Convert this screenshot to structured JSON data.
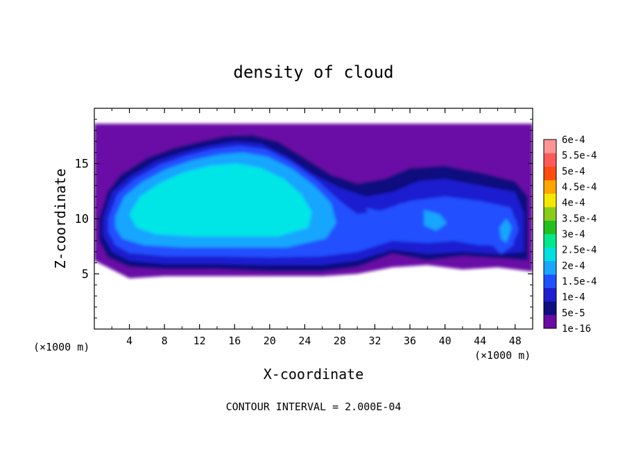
{
  "chart_data": {
    "type": "heatmap",
    "title": "density of cloud",
    "xlabel": "X-coordinate",
    "ylabel": "Z-coordinate",
    "x_unit_note": "(×1000 m)",
    "xlim": [
      0,
      50
    ],
    "ylim": [
      0,
      20
    ],
    "x_ticks": [
      4,
      8,
      12,
      16,
      20,
      24,
      28,
      32,
      36,
      40,
      44,
      48
    ],
    "y_ticks": [
      5,
      10,
      15
    ],
    "footer": "CONTOUR INTERVAL = 2.000E-04",
    "colorbar": {
      "labels": [
        "1e-16",
        "5e-5",
        "1e-4",
        "1.5e-4",
        "2e-4",
        "2.5e-4",
        "3e-4",
        "3.5e-4",
        "4e-4",
        "4.5e-4",
        "5e-4",
        "5.5e-4",
        "6e-4"
      ],
      "colors": [
        "#6a0ba6",
        "#100e80",
        "#1e1ed0",
        "#2050ff",
        "#19a6ff",
        "#00e0e0",
        "#00e88a",
        "#1fc01f",
        "#8acc1a",
        "#f4e800",
        "#ffa500",
        "#ff4a10",
        "#ff5a5a",
        "#ff9595"
      ]
    },
    "field_levels": [
      {
        "level": "1e-16",
        "color": "#6a0ba6"
      },
      {
        "level": "5e-5",
        "color": "#100e80"
      },
      {
        "level": "1e-4",
        "color": "#1e1ed0"
      },
      {
        "level": "1.5e-4",
        "color": "#2050ff"
      },
      {
        "level": "2e-4",
        "color": "#19a6ff"
      },
      {
        "level": ">2e-4",
        "color": "#00e6e6"
      }
    ],
    "cloud_regions": [
      {
        "level": 0,
        "points": [
          [
            0,
            18.6
          ],
          [
            50,
            18.6
          ],
          [
            50,
            5.2
          ],
          [
            46,
            5.6
          ],
          [
            42,
            5.4
          ],
          [
            38,
            5.8
          ],
          [
            34,
            5.6
          ],
          [
            30,
            5.0
          ],
          [
            26,
            4.8
          ],
          [
            20,
            4.8
          ],
          [
            14,
            4.8
          ],
          [
            8,
            4.8
          ],
          [
            4,
            4.6
          ],
          [
            2,
            5.4
          ],
          [
            0,
            6.2
          ]
        ]
      },
      {
        "level": 1,
        "points": [
          [
            0.5,
            10
          ],
          [
            1.5,
            12.5
          ],
          [
            3,
            14
          ],
          [
            6,
            15.5
          ],
          [
            9,
            16.4
          ],
          [
            12,
            17
          ],
          [
            15,
            17.5
          ],
          [
            18,
            17.6
          ],
          [
            21,
            17
          ],
          [
            24,
            15.5
          ],
          [
            27,
            14
          ],
          [
            30,
            13.2
          ],
          [
            33,
            13.6
          ],
          [
            36,
            14.6
          ],
          [
            40,
            14.8
          ],
          [
            44,
            14.2
          ],
          [
            48,
            13.4
          ],
          [
            49.5,
            12
          ],
          [
            49.5,
            6.2
          ],
          [
            46,
            6.4
          ],
          [
            42,
            6.6
          ],
          [
            38,
            6.2
          ],
          [
            34,
            6.8
          ],
          [
            30,
            5.6
          ],
          [
            26,
            5.2
          ],
          [
            20,
            5.2
          ],
          [
            14,
            5.4
          ],
          [
            8,
            5.4
          ],
          [
            4,
            5.6
          ],
          [
            1.5,
            6.5
          ],
          [
            0.5,
            8
          ]
        ]
      },
      {
        "level": 2,
        "points": [
          [
            1,
            10
          ],
          [
            2,
            12.4
          ],
          [
            4,
            13.8
          ],
          [
            7,
            15.2
          ],
          [
            10,
            16
          ],
          [
            13,
            16.6
          ],
          [
            16,
            17
          ],
          [
            19,
            16.8
          ],
          [
            22,
            15.6
          ],
          [
            25,
            14
          ],
          [
            28,
            12.8
          ],
          [
            31,
            12
          ],
          [
            34,
            12.4
          ],
          [
            37,
            13.4
          ],
          [
            40,
            13.6
          ],
          [
            44,
            13
          ],
          [
            48,
            12.4
          ],
          [
            49,
            10.5
          ],
          [
            49,
            7
          ],
          [
            46,
            6.8
          ],
          [
            42,
            7
          ],
          [
            38,
            6.8
          ],
          [
            34,
            7.2
          ],
          [
            30,
            6.2
          ],
          [
            26,
            5.8
          ],
          [
            20,
            5.8
          ],
          [
            14,
            5.9
          ],
          [
            8,
            5.9
          ],
          [
            4,
            6.2
          ],
          [
            2,
            7
          ],
          [
            1,
            8.5
          ]
        ]
      },
      {
        "level": 3,
        "points": [
          [
            1.6,
            10
          ],
          [
            2.6,
            12.2
          ],
          [
            4.6,
            13.6
          ],
          [
            7.5,
            14.9
          ],
          [
            10.5,
            15.7
          ],
          [
            13.5,
            16.3
          ],
          [
            16.5,
            16.6
          ],
          [
            19.5,
            16.3
          ],
          [
            22.5,
            15.1
          ],
          [
            25.5,
            13.4
          ],
          [
            28,
            11.6
          ],
          [
            30,
            10.4
          ],
          [
            33,
            10.8
          ],
          [
            36,
            11.6
          ],
          [
            40,
            12
          ],
          [
            44,
            11.6
          ],
          [
            47.5,
            11
          ],
          [
            48.4,
            9
          ],
          [
            47.6,
            7.6
          ],
          [
            44,
            7.6
          ],
          [
            41,
            8
          ],
          [
            38,
            7.8
          ],
          [
            34,
            8
          ],
          [
            30,
            7
          ],
          [
            26,
            6.6
          ],
          [
            20,
            6.5
          ],
          [
            14,
            6.6
          ],
          [
            8,
            6.6
          ],
          [
            4,
            6.9
          ],
          [
            2.4,
            7.6
          ],
          [
            1.6,
            8.8
          ]
        ]
      },
      {
        "level": 4,
        "points": [
          [
            2.4,
            10.2
          ],
          [
            3.4,
            12
          ],
          [
            5.4,
            13.3
          ],
          [
            8.2,
            14.5
          ],
          [
            11.2,
            15.3
          ],
          [
            14.2,
            15.8
          ],
          [
            17,
            16
          ],
          [
            19.8,
            15.6
          ],
          [
            22.6,
            14.5
          ],
          [
            25.2,
            12.9
          ],
          [
            27,
            11.4
          ],
          [
            27.6,
            9.6
          ],
          [
            26.4,
            8.2
          ],
          [
            22,
            7.4
          ],
          [
            16,
            7.4
          ],
          [
            10,
            7.4
          ],
          [
            5.6,
            7.6
          ],
          [
            3.2,
            8.2
          ],
          [
            2.4,
            9.2
          ]
        ]
      },
      {
        "level": 5,
        "points": [
          [
            4,
            10.4
          ],
          [
            5.2,
            12
          ],
          [
            7.4,
            13.2
          ],
          [
            10.2,
            14.2
          ],
          [
            13.2,
            14.8
          ],
          [
            16.2,
            15
          ],
          [
            19,
            14.6
          ],
          [
            21.6,
            13.6
          ],
          [
            23.6,
            12.2
          ],
          [
            24.8,
            10.6
          ],
          [
            24.4,
            9.2
          ],
          [
            21,
            8.4
          ],
          [
            16,
            8.4
          ],
          [
            11,
            8.4
          ],
          [
            7,
            8.6
          ],
          [
            4.8,
            9.2
          ]
        ]
      },
      {
        "level": 3,
        "points": [
          [
            31,
            11
          ],
          [
            33,
            10.6
          ],
          [
            35,
            11.4
          ],
          [
            38,
            11.2
          ],
          [
            40,
            10.6
          ],
          [
            40.8,
            9.6
          ],
          [
            39,
            8.6
          ],
          [
            36,
            8.8
          ],
          [
            33,
            9
          ],
          [
            31.4,
            9.8
          ]
        ]
      },
      {
        "level": 4,
        "points": [
          [
            37.6,
            10.8
          ],
          [
            39.4,
            10.4
          ],
          [
            40.2,
            9.6
          ],
          [
            39,
            8.9
          ],
          [
            37.6,
            9.4
          ]
        ]
      },
      {
        "level": 3,
        "points": [
          [
            45.4,
            9.2
          ],
          [
            47,
            10.6
          ],
          [
            48.2,
            9.8
          ],
          [
            47.8,
            7.6
          ],
          [
            46.4,
            6.8
          ],
          [
            45.2,
            7.8
          ]
        ]
      },
      {
        "level": 4,
        "points": [
          [
            46.2,
            9.2
          ],
          [
            47,
            10
          ],
          [
            47.6,
            9.2
          ],
          [
            47,
            7.8
          ],
          [
            46.4,
            8.2
          ]
        ]
      }
    ]
  }
}
